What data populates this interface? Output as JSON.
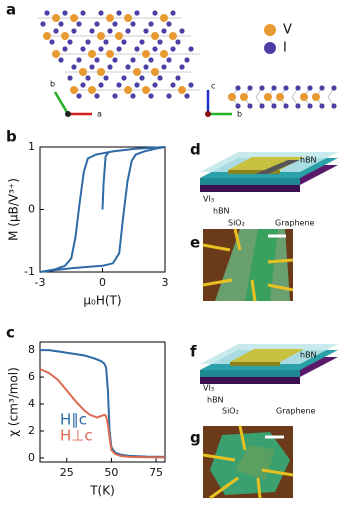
{
  "panel_labels": [
    "a",
    "b",
    "c",
    "d",
    "e",
    "f",
    "g"
  ],
  "crystal_legend": [
    {
      "label": "V",
      "color": "#e89a32"
    },
    {
      "label": "I",
      "color": "#4c3fa6"
    }
  ],
  "top_view_axes": [
    "b",
    "a"
  ],
  "side_view_axes": [
    "c",
    "b"
  ],
  "device_d": [
    "hBN",
    "VI₃",
    "hBN",
    "SiO₂",
    "Graphene"
  ],
  "device_f": [
    "hBN",
    "VI₃",
    "hBN",
    "SiO₂",
    "Graphene"
  ],
  "chart_data": [
    {
      "type": "line",
      "x_label": "μ₀H(T)",
      "y_label": "M (μB/V³⁺)",
      "xlim": [
        -3,
        3
      ],
      "xticks": [
        -3,
        0,
        3
      ],
      "ylim": [
        -1,
        1
      ],
      "yticks": [
        -1,
        0,
        1
      ],
      "series": [
        {
          "color": "#2e6aa6",
          "x": [
            3,
            1.5,
            0.5,
            0,
            -0.3,
            -0.7,
            -0.9,
            -1.1,
            -1.3,
            -1.5,
            -1.8,
            -2.3,
            -3,
            -2.3,
            -1.5,
            -0.8,
            0,
            0.5,
            0.8,
            1.0,
            1.2,
            1.4,
            1.6,
            2.0,
            2.5,
            3
          ],
          "values": [
            1.0,
            0.97,
            0.93,
            0.9,
            0.88,
            0.82,
            0.6,
            0.1,
            -0.45,
            -0.78,
            -0.9,
            -0.96,
            -1.0,
            -0.97,
            -0.94,
            -0.92,
            -0.9,
            -0.86,
            -0.7,
            -0.1,
            0.45,
            0.78,
            0.88,
            0.93,
            0.97,
            1.0
          ]
        },
        {
          "color": "#2e6aa6",
          "x": [
            0,
            0.05,
            0.15,
            0.3
          ],
          "values": [
            0,
            0.4,
            0.85,
            0.92
          ]
        }
      ]
    },
    {
      "type": "line",
      "x_label": "T(K)",
      "y_label": "χ (cm³/mol)",
      "xlim": [
        10,
        80
      ],
      "xticks": [
        25,
        50,
        75
      ],
      "ylim": [
        -0.3,
        8.6
      ],
      "yticks": [
        0,
        2,
        4,
        6,
        8
      ],
      "series": [
        {
          "name": "H∥c",
          "color": "#2e6aa6",
          "x": [
            10,
            15,
            20,
            25,
            30,
            35,
            40,
            44,
            46,
            47,
            48,
            49,
            50,
            52,
            55,
            60,
            70,
            80
          ],
          "values": [
            8.0,
            8.0,
            7.9,
            7.8,
            7.7,
            7.6,
            7.4,
            7.2,
            7.0,
            6.7,
            5.0,
            2.0,
            0.8,
            0.4,
            0.25,
            0.15,
            0.1,
            0.08
          ]
        },
        {
          "name": "H⊥c",
          "color": "#dc6a50",
          "x": [
            10,
            15,
            20,
            25,
            30,
            35,
            38,
            42,
            44,
            46,
            47,
            48,
            49,
            50,
            52,
            55,
            60,
            70,
            80
          ],
          "values": [
            6.6,
            6.3,
            5.8,
            5.0,
            4.2,
            3.5,
            3.2,
            3.0,
            3.1,
            3.2,
            3.1,
            2.5,
            1.5,
            0.6,
            0.3,
            0.15,
            0.08,
            0.05,
            0.04
          ]
        }
      ]
    }
  ]
}
